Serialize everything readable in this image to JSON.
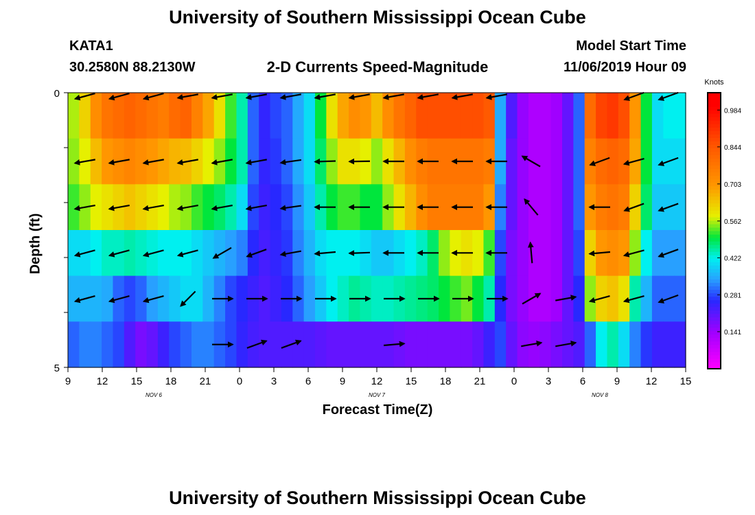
{
  "title_top": "University of Southern Mississippi Ocean Cube",
  "title_bottom": "University of Southern Mississippi Ocean Cube",
  "station": "KATA1",
  "coords": "30.2580N 88.2130W",
  "subtitle": "2-D Currents Speed-Magnitude",
  "model_start_label": "Model Start Time",
  "model_start_value": "11/06/2019 Hour 09",
  "chart_data": {
    "type": "heatmap",
    "title": "2-D Currents Speed-Magnitude",
    "xlabel": "Forecast Time(Z)",
    "ylabel": "Depth (ft)",
    "y_ticks": [
      "0",
      "5"
    ],
    "ylim": [
      0,
      5
    ],
    "x_ticks": [
      "9",
      "12",
      "15",
      "18",
      "21",
      "0",
      "3",
      "6",
      "9",
      "12",
      "15",
      "18",
      "21",
      "0",
      "3",
      "6",
      "9",
      "12",
      "15"
    ],
    "date_labels": [
      {
        "text": "NOV  6",
        "at_tick": 2.5
      },
      {
        "text": "NOV  7",
        "at_tick": 9
      },
      {
        "text": "NOV  8",
        "at_tick": 15.5
      }
    ],
    "colorbar": {
      "unit": "Knots",
      "ticks": [
        "0.984",
        "0.844",
        "0.703",
        "0.562",
        "0.422",
        "0.281",
        "0.141"
      ],
      "range": [
        0.0,
        1.05
      ]
    },
    "bands": [
      [
        0.56,
        0.62,
        0.72,
        0.78,
        0.8,
        0.82,
        0.8,
        0.78,
        0.76,
        0.8,
        0.82,
        0.75,
        0.68,
        0.6,
        0.52,
        0.45,
        0.3,
        0.25,
        0.28,
        0.3,
        0.35,
        0.4,
        0.5,
        0.6,
        0.68,
        0.72,
        0.7,
        0.65,
        0.72,
        0.78,
        0.82,
        0.86,
        0.86,
        0.86,
        0.86,
        0.86,
        0.86,
        0.84,
        0.35,
        0.22,
        0.15,
        0.12,
        0.12,
        0.14,
        0.2,
        0.3,
        0.8,
        0.88,
        0.9,
        0.86,
        0.7,
        0.5,
        0.4,
        0.42,
        0.42
      ],
      [
        0.55,
        0.58,
        0.65,
        0.7,
        0.72,
        0.74,
        0.72,
        0.7,
        0.68,
        0.66,
        0.65,
        0.62,
        0.58,
        0.55,
        0.5,
        0.45,
        0.3,
        0.25,
        0.27,
        0.3,
        0.35,
        0.4,
        0.48,
        0.55,
        0.6,
        0.6,
        0.58,
        0.55,
        0.6,
        0.66,
        0.72,
        0.76,
        0.78,
        0.78,
        0.78,
        0.78,
        0.78,
        0.76,
        0.35,
        0.2,
        0.15,
        0.12,
        0.12,
        0.14,
        0.2,
        0.3,
        0.75,
        0.8,
        0.82,
        0.8,
        0.68,
        0.5,
        0.4,
        0.4,
        0.4
      ],
      [
        0.52,
        0.55,
        0.58,
        0.6,
        0.62,
        0.64,
        0.62,
        0.6,
        0.58,
        0.56,
        0.55,
        0.52,
        0.5,
        0.48,
        0.45,
        0.4,
        0.28,
        0.24,
        0.26,
        0.28,
        0.33,
        0.38,
        0.45,
        0.5,
        0.52,
        0.52,
        0.5,
        0.5,
        0.55,
        0.6,
        0.66,
        0.72,
        0.76,
        0.76,
        0.76,
        0.76,
        0.76,
        0.7,
        0.32,
        0.2,
        0.15,
        0.12,
        0.12,
        0.14,
        0.2,
        0.3,
        0.7,
        0.76,
        0.78,
        0.76,
        0.62,
        0.48,
        0.38,
        0.38,
        0.38
      ],
      [
        0.4,
        0.4,
        0.42,
        0.44,
        0.44,
        0.45,
        0.44,
        0.43,
        0.42,
        0.42,
        0.42,
        0.4,
        0.38,
        0.36,
        0.34,
        0.32,
        0.26,
        0.23,
        0.25,
        0.27,
        0.32,
        0.36,
        0.4,
        0.42,
        0.42,
        0.42,
        0.4,
        0.38,
        0.38,
        0.4,
        0.42,
        0.44,
        0.48,
        0.55,
        0.58,
        0.6,
        0.58,
        0.52,
        0.28,
        0.18,
        0.15,
        0.12,
        0.12,
        0.14,
        0.2,
        0.28,
        0.62,
        0.7,
        0.72,
        0.7,
        0.55,
        0.42,
        0.34,
        0.34,
        0.34
      ],
      [
        0.36,
        0.36,
        0.36,
        0.35,
        0.3,
        0.28,
        0.3,
        0.34,
        0.36,
        0.38,
        0.4,
        0.4,
        0.36,
        0.32,
        0.28,
        0.26,
        0.24,
        0.22,
        0.24,
        0.26,
        0.3,
        0.34,
        0.38,
        0.42,
        0.44,
        0.46,
        0.45,
        0.44,
        0.44,
        0.45,
        0.46,
        0.47,
        0.48,
        0.5,
        0.52,
        0.54,
        0.5,
        0.45,
        0.26,
        0.18,
        0.15,
        0.12,
        0.12,
        0.14,
        0.2,
        0.26,
        0.55,
        0.62,
        0.64,
        0.6,
        0.45,
        0.36,
        0.3,
        0.3,
        0.3
      ],
      [
        0.3,
        0.32,
        0.32,
        0.3,
        0.28,
        0.22,
        0.18,
        0.2,
        0.24,
        0.28,
        0.3,
        0.32,
        0.32,
        0.3,
        0.28,
        0.25,
        0.23,
        0.22,
        0.22,
        0.22,
        0.22,
        0.22,
        0.21,
        0.2,
        0.2,
        0.2,
        0.2,
        0.2,
        0.2,
        0.19,
        0.18,
        0.18,
        0.18,
        0.18,
        0.18,
        0.18,
        0.2,
        0.24,
        0.28,
        0.2,
        0.16,
        0.15,
        0.16,
        0.18,
        0.2,
        0.22,
        0.3,
        0.42,
        0.45,
        0.4,
        0.32,
        0.27,
        0.24,
        0.24,
        0.24
      ]
    ],
    "arrow_columns_ticks": [
      0.5,
      1.5,
      2.5,
      3.5,
      4.5,
      5.5,
      6.5,
      7.5,
      8.5,
      9.5,
      10.5,
      11.5,
      12.5,
      13.5,
      14.5,
      15.5,
      16.5,
      17.5
    ],
    "vectors_deg": [
      [
        195,
        195,
        195,
        190,
        190,
        190,
        190,
        190,
        190,
        190,
        190,
        190,
        190,
        null,
        null,
        null,
        200,
        200
      ],
      [
        190,
        190,
        190,
        190,
        190,
        190,
        188,
        182,
        181,
        180,
        180,
        180,
        180,
        150,
        null,
        200,
        195,
        200
      ],
      [
        190,
        190,
        190,
        190,
        190,
        190,
        188,
        180,
        180,
        180,
        180,
        180,
        180,
        130,
        null,
        180,
        200,
        200
      ],
      [
        195,
        195,
        195,
        195,
        210,
        200,
        190,
        185,
        182,
        180,
        180,
        180,
        180,
        95,
        null,
        185,
        195,
        200
      ],
      [
        195,
        195,
        195,
        225,
        0,
        0,
        0,
        0,
        0,
        0,
        0,
        0,
        0,
        30,
        10,
        195,
        195,
        200
      ],
      [
        null,
        null,
        null,
        null,
        0,
        20,
        20,
        null,
        null,
        5,
        null,
        null,
        null,
        10,
        10,
        null,
        null,
        null
      ]
    ]
  }
}
